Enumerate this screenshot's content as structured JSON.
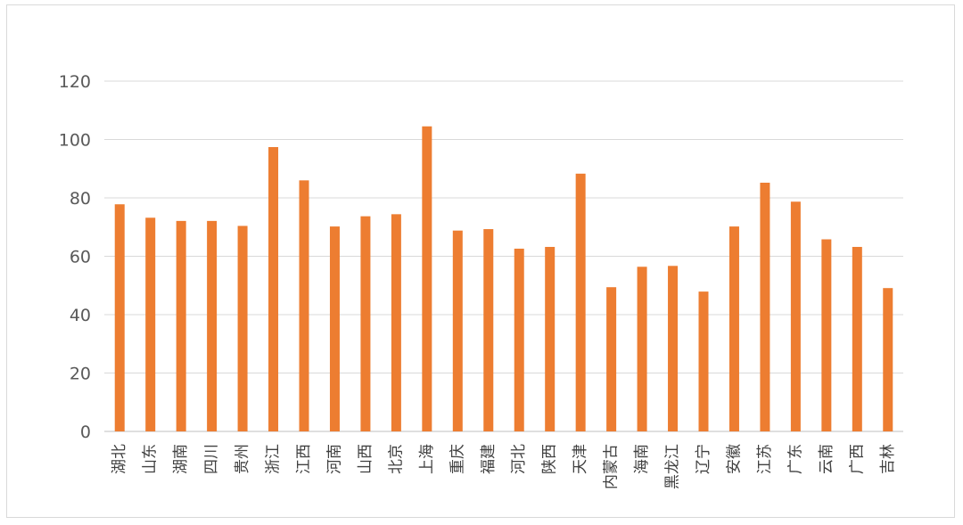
{
  "chart_data": {
    "type": "bar",
    "categories": [
      "湖北",
      "山东",
      "湖南",
      "四川",
      "贵州",
      "浙江",
      "江西",
      "河南",
      "山西",
      "北京",
      "上海",
      "重庆",
      "福建",
      "河北",
      "陕西",
      "天津",
      "内蒙古",
      "海南",
      "黑龙江",
      "辽宁",
      "安徽",
      "江苏",
      "广东",
      "云南",
      "广西",
      "吉林"
    ],
    "values": [
      77.8,
      73.2,
      72.1,
      72.1,
      70.4,
      97.4,
      86.0,
      70.2,
      73.7,
      74.4,
      104.5,
      68.8,
      69.3,
      62.6,
      63.2,
      88.3,
      49.4,
      56.4,
      56.7,
      47.9,
      70.2,
      85.2,
      78.7,
      65.8,
      63.2,
      49.1
    ],
    "title": "",
    "xlabel": "",
    "ylabel": "",
    "ylim": [
      0,
      120
    ],
    "yticks": [
      "0",
      "20",
      "40",
      "60",
      "80",
      "100",
      "120"
    ],
    "grid": true,
    "legend": "none",
    "bar_color": "#ED7D31",
    "grid_color": "#d9d9d9",
    "axis_color": "#bfbfbf"
  }
}
